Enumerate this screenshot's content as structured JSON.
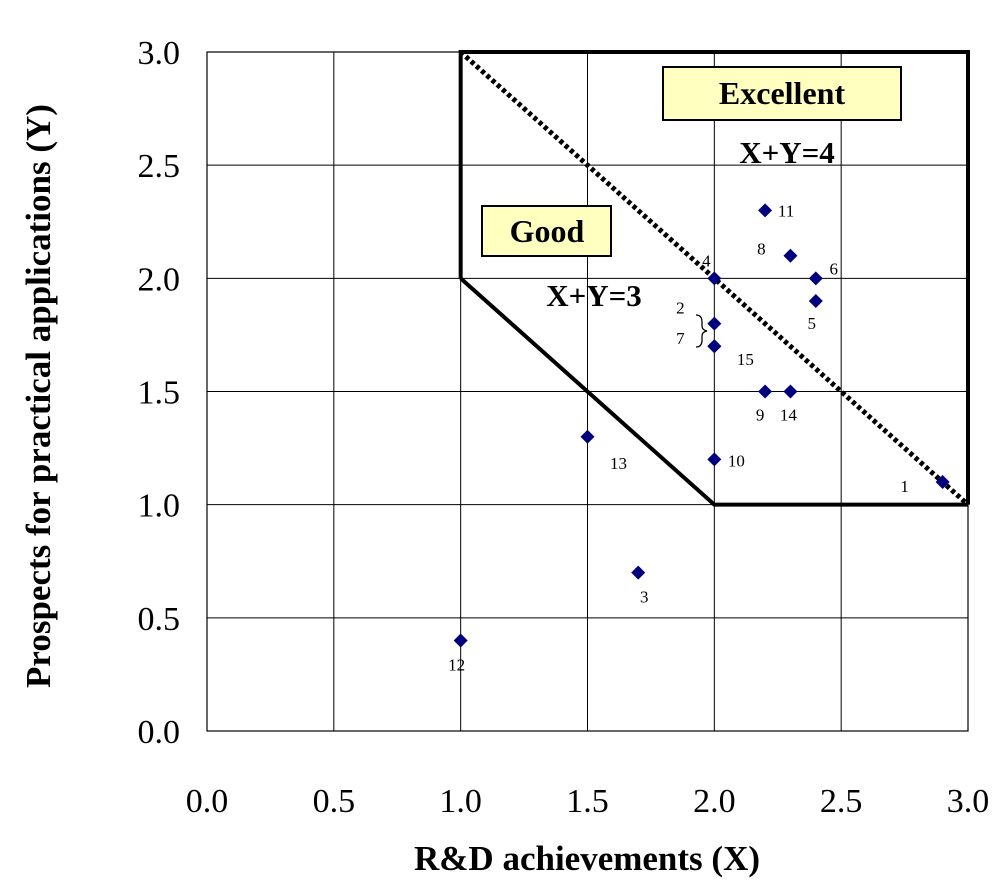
{
  "chart_data": {
    "type": "scatter",
    "title": "",
    "xlabel": "R&D achievements (X)",
    "ylabel": "Prospects for practical applications (Y)",
    "xlim": [
      0.0,
      3.0
    ],
    "ylim": [
      0.0,
      3.0
    ],
    "x_ticks": [
      "0.0",
      "0.5",
      "1.0",
      "1.5",
      "2.0",
      "2.5",
      "3.0"
    ],
    "y_ticks": [
      "0.0",
      "0.5",
      "1.0",
      "1.5",
      "2.0",
      "2.5",
      "3.0"
    ],
    "grid": true,
    "marker_color": "#00007f",
    "points": [
      {
        "label": "1",
        "x": 2.9,
        "y": 1.1
      },
      {
        "label": "2",
        "x": 2.0,
        "y": 1.8
      },
      {
        "label": "3",
        "x": 1.7,
        "y": 0.7
      },
      {
        "label": "4",
        "x": 2.0,
        "y": 2.0
      },
      {
        "label": "5",
        "x": 2.4,
        "y": 1.9
      },
      {
        "label": "6",
        "x": 2.4,
        "y": 2.0
      },
      {
        "label": "7",
        "x": 2.0,
        "y": 1.7
      },
      {
        "label": "8",
        "x": 2.3,
        "y": 2.1
      },
      {
        "label": "9",
        "x": 2.2,
        "y": 1.5
      },
      {
        "label": "10",
        "x": 2.0,
        "y": 1.2
      },
      {
        "label": "11",
        "x": 2.2,
        "y": 2.3
      },
      {
        "label": "12",
        "x": 1.0,
        "y": 0.4
      },
      {
        "label": "13",
        "x": 1.5,
        "y": 1.3
      },
      {
        "label": "14",
        "x": 2.3,
        "y": 1.5
      },
      {
        "label": "15",
        "x": 2.0,
        "y": 1.7
      }
    ],
    "regions": {
      "excellent_label": "Excellent",
      "good_label": "Good",
      "line_excellent_label": "X+Y=4",
      "line_good_label": "X+Y=3",
      "outer_boundary": [
        [
          1.0,
          2.0
        ],
        [
          1.0,
          3.0
        ],
        [
          3.0,
          3.0
        ],
        [
          3.0,
          1.0
        ]
      ],
      "good_boundary": [
        [
          1.0,
          2.0
        ],
        [
          2.0,
          1.0
        ],
        [
          3.0,
          1.0
        ]
      ],
      "excellent_line": [
        [
          1.0,
          3.0
        ],
        [
          3.0,
          1.0
        ]
      ]
    }
  }
}
